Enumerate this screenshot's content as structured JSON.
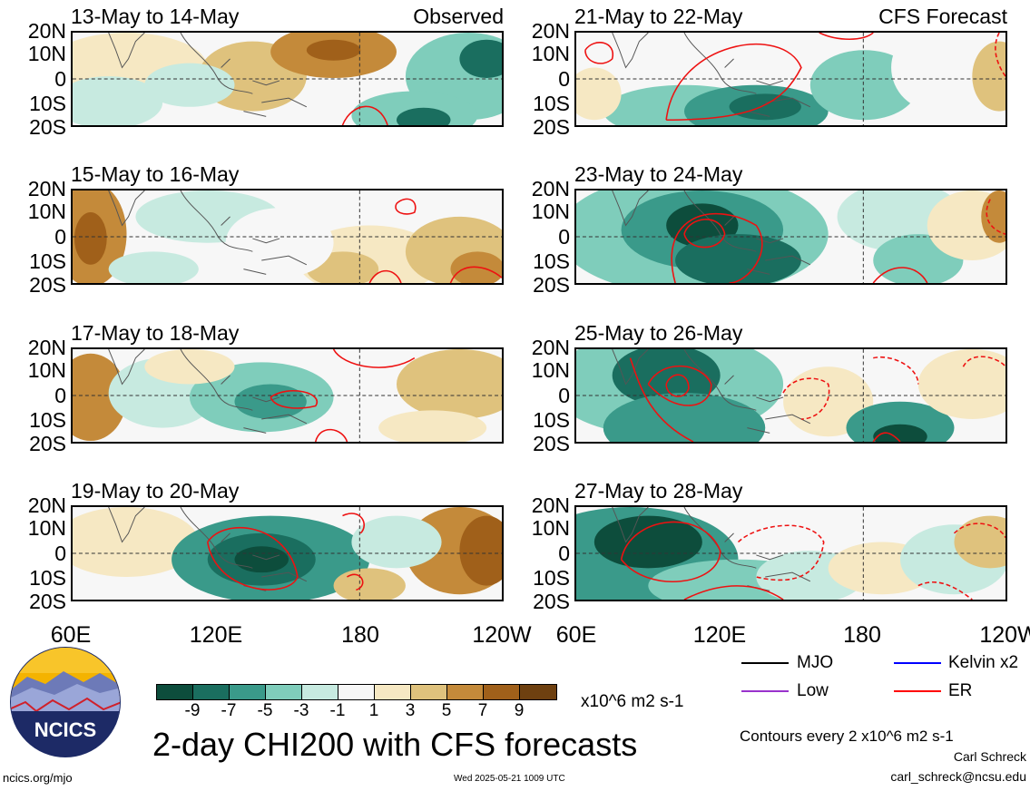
{
  "panels_left": [
    {
      "title": "13-May to 14-May",
      "tag": "Observed"
    },
    {
      "title": "15-May to 16-May",
      "tag": ""
    },
    {
      "title": "17-May to 18-May",
      "tag": ""
    },
    {
      "title": "19-May to 20-May",
      "tag": ""
    }
  ],
  "panels_right": [
    {
      "title": "21-May to 22-May",
      "tag": "CFS Forecast"
    },
    {
      "title": "23-May to 24-May",
      "tag": ""
    },
    {
      "title": "25-May to 26-May",
      "tag": ""
    },
    {
      "title": "27-May to 28-May",
      "tag": ""
    }
  ],
  "lat_ticks": [
    "20N",
    "10N",
    "0",
    "10S",
    "20S"
  ],
  "lon_ticks": [
    "60E",
    "120E",
    "180",
    "120W"
  ],
  "colorbar": {
    "colors": [
      "#0d4d3c",
      "#1a6e5f",
      "#3a9a8a",
      "#7fcdbb",
      "#c7eae0",
      "#f7f7f7",
      "#f6e8c3",
      "#dfc27d",
      "#c48a3a",
      "#a0601a",
      "#6e4010"
    ],
    "ticks": [
      "-9",
      "-7",
      "-5",
      "-3",
      "-1",
      "1",
      "3",
      "5",
      "7",
      "9"
    ],
    "units": "x10^6 m2 s-1"
  },
  "legend": [
    {
      "label": "MJO",
      "color": "#000000"
    },
    {
      "label": "Kelvin x2",
      "color": "#0000ff"
    },
    {
      "label": "Low",
      "color": "#9933cc"
    },
    {
      "label": "ER",
      "color": "#ff0000"
    }
  ],
  "main_title": "2-day CHI200 with CFS forecasts",
  "contours_note": "Contours every 2 x10^6 m2 s-1",
  "author": "Carl Schreck",
  "email": "carl_schreck@ncsu.edu",
  "url": "ncics.org/mjo",
  "timestamp": "Wed 2025-05-21 1009 UTC",
  "logo_text": "NCICS",
  "chart_data": {
    "type": "heatmap",
    "title": "2-day CHI200 with CFS forecasts",
    "variable": "CHI200 anomaly",
    "units": "x10^6 m2 s-1",
    "color_levels": [
      -9,
      -7,
      -5,
      -3,
      -1,
      1,
      3,
      5,
      7,
      9
    ],
    "x_range": [
      "60E",
      "120W"
    ],
    "y_range": [
      "20S",
      "20N"
    ],
    "panels": [
      "13-May to 14-May",
      "15-May to 16-May",
      "17-May to 18-May",
      "19-May to 20-May",
      "21-May to 22-May",
      "23-May to 24-May",
      "25-May to 26-May",
      "27-May to 28-May"
    ],
    "contour_interval": 2,
    "contour_series": [
      "MJO",
      "Kelvin x2",
      "Low",
      "ER"
    ],
    "panel_sources": {
      "Observed": "left column",
      "CFS Forecast": "right column"
    }
  }
}
